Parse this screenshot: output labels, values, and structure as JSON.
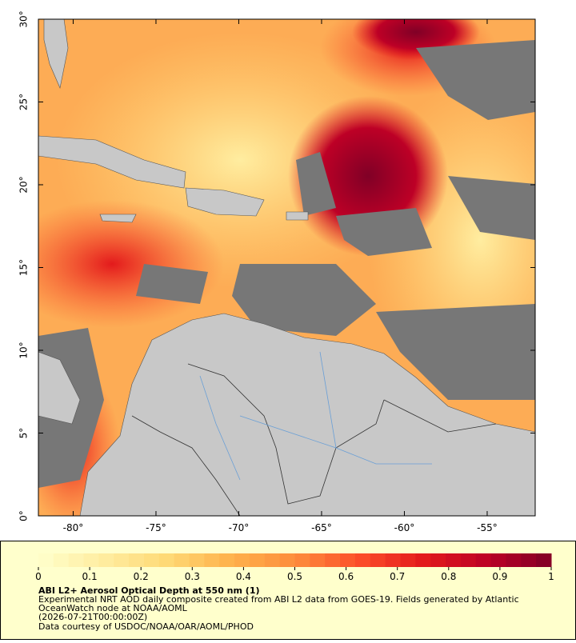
{
  "map": {
    "xlim": [
      -82.1,
      -52.1
    ],
    "ylim": [
      0,
      30
    ],
    "xticks": [
      {
        "value": -80,
        "label": "-80°"
      },
      {
        "value": -75,
        "label": "-75°"
      },
      {
        "value": -70,
        "label": "-70°"
      },
      {
        "value": -65,
        "label": "-65°"
      },
      {
        "value": -60,
        "label": "-60°"
      },
      {
        "value": -55,
        "label": "-55°"
      }
    ],
    "yticks": [
      {
        "value": 0,
        "label": "0°"
      },
      {
        "value": 5,
        "label": "5°"
      },
      {
        "value": 10,
        "label": "10°"
      },
      {
        "value": 15,
        "label": "15°"
      },
      {
        "value": 20,
        "label": "20°"
      },
      {
        "value": 25,
        "label": "25°"
      },
      {
        "value": 30,
        "label": "30°"
      }
    ]
  },
  "colorbar": {
    "lim": [
      0,
      1
    ],
    "ticks": [
      0,
      0.1,
      0.2,
      0.3,
      0.4,
      0.5,
      0.6,
      0.7,
      0.8,
      0.9,
      1
    ],
    "colors": [
      "#ffffcc",
      "#ffeda0",
      "#fed976",
      "#feb24c",
      "#fd8d3c",
      "#fc4e2a",
      "#e31a1c",
      "#bd0026",
      "#800026"
    ]
  },
  "caption": {
    "title": "ABI L2+ Aerosol Optical Depth at 550 nm (1)",
    "description_1": "Experimental NRT AOD daily composite created from ABI L2 data from GOES-19. Fields generated by Atlantic",
    "description_2": "OceanWatch node at NOAA/AOML",
    "date": "(2026-07-21T00:00:00Z)",
    "credit": "Data courtesy of USDOC/NOAA/OAR/AOML/PHOD"
  }
}
